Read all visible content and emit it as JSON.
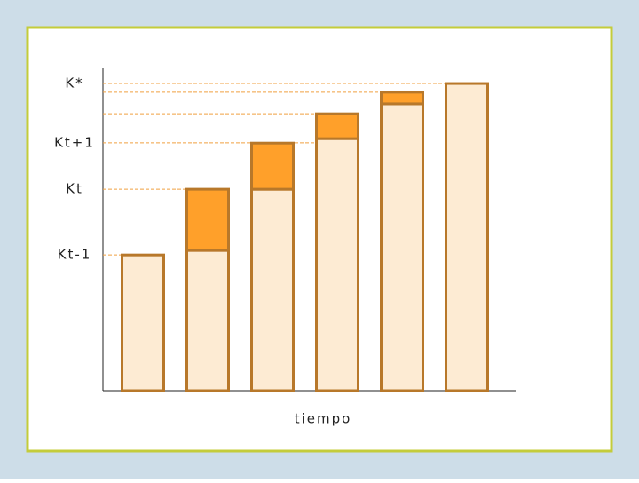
{
  "chart_data": {
    "type": "stacked-bar",
    "x_label": "tiempo",
    "series": [
      {
        "color": "#fdebd3",
        "values": [
          42.1,
          43.5,
          62.5,
          78.2,
          89.0,
          95.3
        ]
      },
      {
        "color": "#ffa02a",
        "values": [
          0,
          19.0,
          14.3,
          7.7,
          3.6,
          0
        ]
      }
    ],
    "bar_stroke": "#b8782a",
    "ylim": [
      0,
      100
    ],
    "yticks": [
      {
        "value": 95.3,
        "label": "K*"
      },
      {
        "value": 92.6,
        "label": null
      },
      {
        "value": 85.9,
        "label": null
      },
      {
        "value": 76.9,
        "label": "Kt+1"
      },
      {
        "value": 62.5,
        "label": "Kt"
      },
      {
        "value": 42.1,
        "label": "Kt-1"
      }
    ],
    "grid": true
  }
}
